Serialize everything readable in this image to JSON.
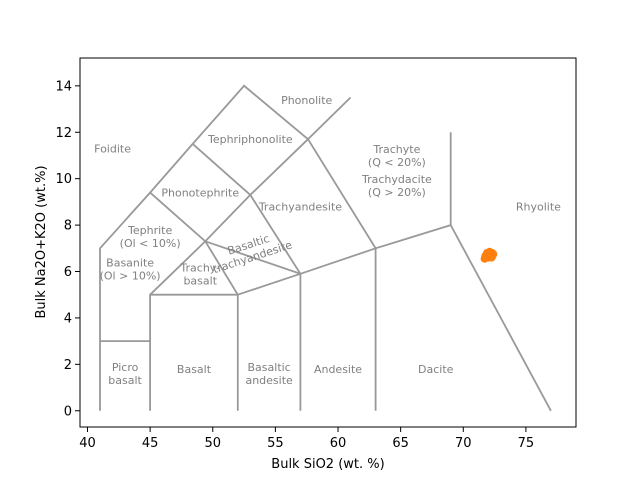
{
  "chart_data": {
    "type": "scatter",
    "title": "",
    "xlabel": "Bulk SiO2 (wt. %)",
    "ylabel": "Bulk Na2O+K2O (wt.%)",
    "xlim": [
      39.4,
      79
    ],
    "ylim": [
      -0.7,
      15.2
    ],
    "xticks": [
      40,
      45,
      50,
      55,
      60,
      65,
      70,
      75
    ],
    "yticks": [
      0,
      2,
      4,
      6,
      8,
      10,
      12,
      14
    ],
    "grid": false,
    "legend": "none",
    "colors": {
      "boundary": "#999999",
      "label": "#808080",
      "points": "#ff7f0e"
    },
    "tas_boundaries": [
      [
        [
          41,
          0
        ],
        [
          41,
          7
        ],
        [
          45,
          9.4
        ],
        [
          48.4,
          11.5
        ],
        [
          52.5,
          14
        ],
        [
          57.6,
          11.7
        ],
        [
          61,
          13.5
        ]
      ],
      [
        [
          41,
          3
        ],
        [
          45,
          3
        ]
      ],
      [
        [
          45,
          0
        ],
        [
          45,
          5
        ],
        [
          52,
          5
        ],
        [
          52,
          0
        ]
      ],
      [
        [
          45,
          5
        ],
        [
          49.4,
          7.3
        ],
        [
          53,
          9.3
        ],
        [
          57.6,
          11.7
        ]
      ],
      [
        [
          45,
          9.4
        ],
        [
          49.4,
          7.3
        ],
        [
          52,
          5
        ]
      ],
      [
        [
          48.4,
          11.5
        ],
        [
          53,
          9.3
        ]
      ],
      [
        [
          49.4,
          7.3
        ],
        [
          57,
          5.9
        ],
        [
          57,
          0
        ]
      ],
      [
        [
          53,
          9.3
        ],
        [
          57,
          5.9
        ]
      ],
      [
        [
          52,
          5
        ],
        [
          57,
          5.9
        ],
        [
          63,
          7
        ],
        [
          69,
          8
        ],
        [
          77,
          0
        ]
      ],
      [
        [
          57.6,
          11.7
        ],
        [
          63,
          7
        ],
        [
          63,
          0
        ]
      ],
      [
        [
          69,
          8
        ],
        [
          69,
          12
        ]
      ]
    ],
    "fields": [
      {
        "lines": [
          "Foidite"
        ],
        "x": 42.0,
        "y": 11.3,
        "rotate": 0
      },
      {
        "lines": [
          "Phonolite"
        ],
        "x": 57.5,
        "y": 13.4,
        "rotate": 0
      },
      {
        "lines": [
          "Tephriphonolite"
        ],
        "x": 53.0,
        "y": 11.7,
        "rotate": 0
      },
      {
        "lines": [
          "Phonotephrite"
        ],
        "x": 49.0,
        "y": 9.4,
        "rotate": 0
      },
      {
        "lines": [
          "Tephrite",
          "(Ol < 10%)"
        ],
        "x": 45.0,
        "y": 7.5,
        "rotate": 0
      },
      {
        "lines": [
          "Basanite",
          "(Ol > 10%)"
        ],
        "x": 43.4,
        "y": 6.1,
        "rotate": 0
      },
      {
        "lines": [
          "Trachyandesite"
        ],
        "x": 57.0,
        "y": 8.8,
        "rotate": 0
      },
      {
        "lines": [
          "Basaltic",
          "trachyandesite"
        ],
        "x": 53.0,
        "y": 6.9,
        "rotate": -18
      },
      {
        "lines": [
          "Trachy-",
          "basalt"
        ],
        "x": 49.0,
        "y": 5.9,
        "rotate": 0
      },
      {
        "lines": [
          "Trachyte",
          "(Q < 20%)"
        ],
        "x": 64.7,
        "y": 11.0,
        "rotate": 0
      },
      {
        "lines": [
          "Trachydacite",
          "(Q > 20%)"
        ],
        "x": 64.7,
        "y": 9.7,
        "rotate": 0
      },
      {
        "lines": [
          "Rhyolite"
        ],
        "x": 76.0,
        "y": 8.8,
        "rotate": 0
      },
      {
        "lines": [
          "Picro",
          "basalt"
        ],
        "x": 43.0,
        "y": 1.6,
        "rotate": 0
      },
      {
        "lines": [
          "Basalt"
        ],
        "x": 48.5,
        "y": 1.8,
        "rotate": 0
      },
      {
        "lines": [
          "Basaltic",
          "andesite"
        ],
        "x": 54.5,
        "y": 1.6,
        "rotate": 0
      },
      {
        "lines": [
          "Andesite"
        ],
        "x": 60.0,
        "y": 1.8,
        "rotate": 0
      },
      {
        "lines": [
          "Dacite"
        ],
        "x": 67.8,
        "y": 1.8,
        "rotate": 0
      }
    ],
    "series": [
      {
        "x": [
          71.7,
          71.8,
          71.9,
          72.0,
          72.1,
          72.2,
          72.3,
          72.4,
          71.8,
          72.0,
          72.2,
          72.35,
          71.9,
          72.1,
          72.3,
          71.75,
          72.05,
          72.25
        ],
        "y": [
          6.55,
          6.6,
          6.65,
          6.7,
          6.75,
          6.8,
          6.8,
          6.75,
          6.7,
          6.6,
          6.65,
          6.7,
          6.8,
          6.85,
          6.7,
          6.65,
          6.75,
          6.6
        ]
      }
    ]
  }
}
